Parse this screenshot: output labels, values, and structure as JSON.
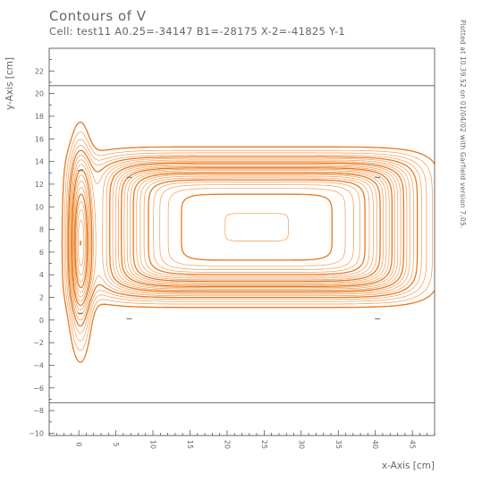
{
  "chart_data": {
    "type": "contour",
    "title": "Contours of V",
    "subtitle": "Cell: test11 A0.25=-34147 B1=-28175 X-2=-41825 Y-1",
    "side_note": "Plotted at 10.39.52 on 01/04/02 with Garfield version 7.05.",
    "xlabel": "x-Axis [cm]",
    "ylabel": "y-Axis [cm]",
    "xlim": [
      -4,
      48
    ],
    "ylim": [
      -10.2,
      24
    ],
    "x_ticks": [
      0,
      5,
      10,
      15,
      20,
      25,
      30,
      35,
      40,
      45
    ],
    "y_ticks": [
      -10,
      -8,
      -6,
      -4,
      -2,
      0,
      2,
      4,
      6,
      8,
      10,
      12,
      14,
      16,
      18,
      20,
      22
    ],
    "planes_y": [
      20.7,
      -7.3
    ],
    "wires": [
      {
        "x": 0.2,
        "y": 0.6
      },
      {
        "x": 0.2,
        "y": 13.2
      },
      {
        "x": 6.8,
        "y": 12.6
      },
      {
        "x": 40.3,
        "y": 12.6
      },
      {
        "x": 6.8,
        "y": 0.1
      },
      {
        "x": 40.3,
        "y": 0.1
      }
    ],
    "line_color": "#e8771e",
    "accent_color": "#f09a50"
  }
}
